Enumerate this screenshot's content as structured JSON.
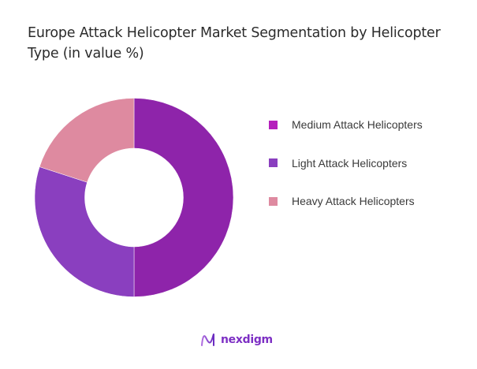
{
  "title": "Europe Attack Helicopter Market Segmentation by Helicopter Type (in value %)",
  "legend": [
    {
      "label": "Medium Attack Helicopters",
      "color": "#b51fbc"
    },
    {
      "label": "Light Attack Helicopters",
      "color": "#8a3fbf"
    },
    {
      "label": "Heavy Attack Helicopters",
      "color": "#de8aa0"
    }
  ],
  "logo": {
    "text": "nexdigm",
    "icon": "nexdigm-wave-logo-icon"
  },
  "chart_data": {
    "type": "pie",
    "variant": "donut",
    "title": "Europe Attack Helicopter Market Segmentation by Helicopter Type (in value %)",
    "categories": [
      "Medium Attack Helicopters",
      "Light Attack Helicopters",
      "Heavy Attack Helicopters"
    ],
    "values": [
      50,
      30,
      20
    ],
    "unit": "%",
    "colors": [
      "#8e24aa",
      "#8a3fbf",
      "#de8aa0"
    ],
    "legend_position": "right",
    "start_angle": "12 o'clock, clockwise"
  }
}
